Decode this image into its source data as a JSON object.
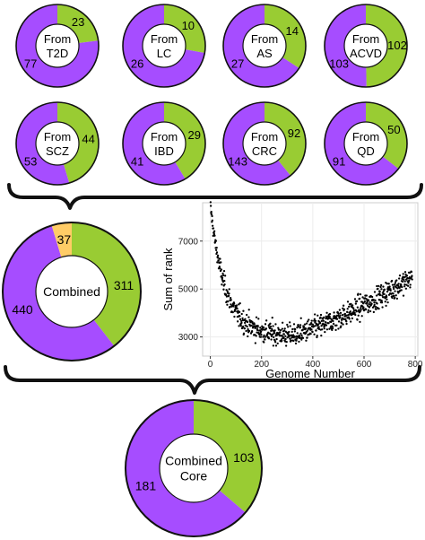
{
  "colors": {
    "purple": "#a64dff",
    "green": "#99cc33",
    "orange": "#ffcc66",
    "ring_stroke": "#111111",
    "point": "#000000",
    "panel_border": "#cccccc",
    "grid": "#ececec"
  },
  "chart_data": [
    {
      "type": "pie",
      "style": "donut",
      "center_label": [
        "From",
        "T2D"
      ],
      "slices": [
        {
          "label": "23",
          "value": 23,
          "color": "green"
        },
        {
          "label": "77",
          "value": 77,
          "color": "purple"
        }
      ]
    },
    {
      "type": "pie",
      "style": "donut",
      "center_label": [
        "From",
        "LC"
      ],
      "slices": [
        {
          "label": "10",
          "value": 10,
          "color": "green"
        },
        {
          "label": "26",
          "value": 26,
          "color": "purple"
        }
      ]
    },
    {
      "type": "pie",
      "style": "donut",
      "center_label": [
        "From",
        "AS"
      ],
      "slices": [
        {
          "label": "14",
          "value": 14,
          "color": "green"
        },
        {
          "label": "27",
          "value": 27,
          "color": "purple"
        }
      ]
    },
    {
      "type": "pie",
      "style": "donut",
      "center_label": [
        "From",
        "ACVD"
      ],
      "slices": [
        {
          "label": "102",
          "value": 102,
          "color": "green"
        },
        {
          "label": "103",
          "value": 103,
          "color": "purple"
        }
      ]
    },
    {
      "type": "pie",
      "style": "donut",
      "center_label": [
        "From",
        "SCZ"
      ],
      "slices": [
        {
          "label": "44",
          "value": 44,
          "color": "green"
        },
        {
          "label": "53",
          "value": 53,
          "color": "purple"
        }
      ]
    },
    {
      "type": "pie",
      "style": "donut",
      "center_label": [
        "From",
        "IBD"
      ],
      "slices": [
        {
          "label": "29",
          "value": 29,
          "color": "green"
        },
        {
          "label": "41",
          "value": 41,
          "color": "purple"
        }
      ]
    },
    {
      "type": "pie",
      "style": "donut",
      "center_label": [
        "From",
        "CRC"
      ],
      "slices": [
        {
          "label": "92",
          "value": 92,
          "color": "green"
        },
        {
          "label": "143",
          "value": 143,
          "color": "purple"
        }
      ]
    },
    {
      "type": "pie",
      "style": "donut",
      "center_label": [
        "From",
        "QD"
      ],
      "slices": [
        {
          "label": "50",
          "value": 50,
          "color": "green"
        },
        {
          "label": "91",
          "value": 91,
          "color": "purple"
        }
      ]
    },
    {
      "type": "pie",
      "style": "donut",
      "center_label": [
        "Combined"
      ],
      "slices": [
        {
          "label": "311",
          "value": 311,
          "color": "green"
        },
        {
          "label": "440",
          "value": 440,
          "color": "purple"
        },
        {
          "label": "37",
          "value": 37,
          "color": "orange"
        }
      ]
    },
    {
      "type": "pie",
      "style": "donut",
      "center_label": [
        "Combined",
        "Core"
      ],
      "slices": [
        {
          "label": "103",
          "value": 103,
          "color": "green"
        },
        {
          "label": "181",
          "value": 181,
          "color": "purple"
        }
      ]
    },
    {
      "type": "scatter",
      "xlabel": "Genome Number",
      "ylabel": "Sum of rank",
      "xlim": [
        -30,
        810
      ],
      "ylim": [
        2200,
        8600
      ],
      "xticks": [
        0,
        200,
        400,
        600,
        800
      ],
      "yticks": [
        3000,
        5000,
        7000
      ],
      "grid": true,
      "points": {
        "n": 788,
        "shape": "U-shaped",
        "x_range": [
          1,
          788
        ],
        "y_start": 8300,
        "y_min_near_x": 300,
        "y_min": 2400,
        "y_end": 6300
      }
    }
  ]
}
